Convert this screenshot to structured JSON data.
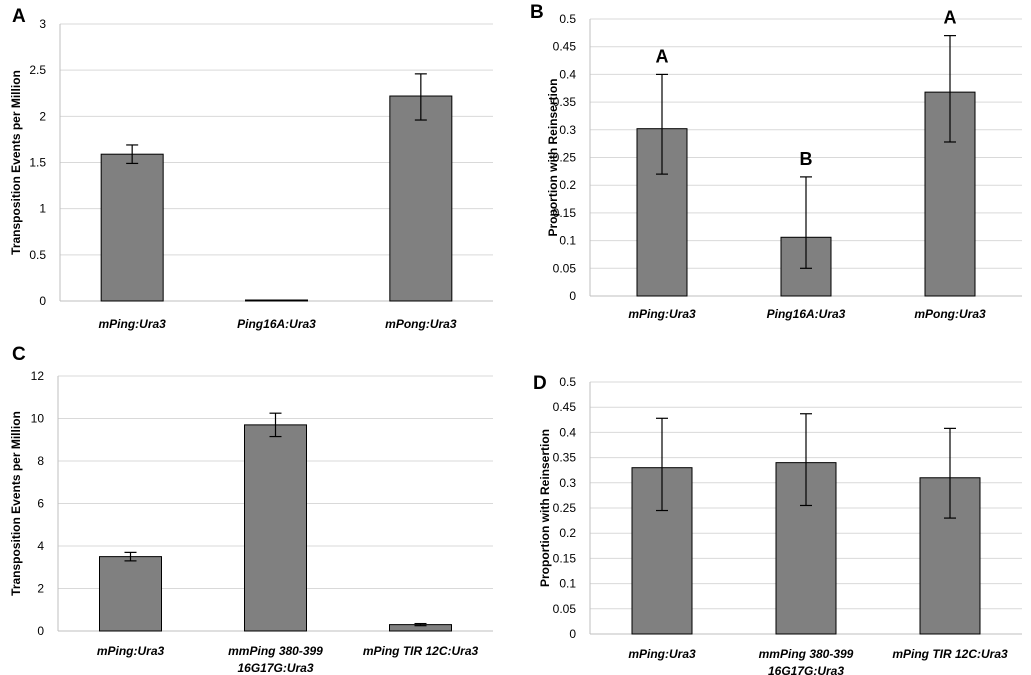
{
  "chart_data": [
    {
      "panel": "A",
      "type": "bar",
      "ylabel": "Transposition  Events per Million",
      "ylim": [
        0,
        3
      ],
      "ticks": [
        "0",
        "0.5",
        "1",
        "1.5",
        "2",
        "2.5",
        "3"
      ],
      "categories": [
        [
          "mPing:Ura3"
        ],
        [
          "Ping16A:Ura3"
        ],
        [
          "mPong:Ura3"
        ]
      ],
      "values": [
        1.59,
        0.01,
        2.22
      ],
      "err_low": [
        1.49,
        0.01,
        1.96
      ],
      "err_high": [
        1.69,
        0.01,
        2.46
      ],
      "sig_labels": []
    },
    {
      "panel": "B",
      "type": "bar",
      "ylabel": "Proportion with Reinsertion",
      "ylim": [
        0,
        0.5
      ],
      "ticks": [
        "0",
        "0.05",
        "0.1",
        "0.15",
        "0.2",
        "0.25",
        "0.3",
        "0.35",
        "0.4",
        "0.45",
        "0.5"
      ],
      "categories": [
        [
          "mPing:Ura3"
        ],
        [
          "Ping16A:Ura3"
        ],
        [
          "mPong:Ura3"
        ]
      ],
      "values": [
        0.302,
        0.106,
        0.368
      ],
      "err_low": [
        0.22,
        0.05,
        0.278
      ],
      "err_high": [
        0.4,
        0.215,
        0.47
      ],
      "sig_labels": [
        "A",
        "B",
        "A"
      ]
    },
    {
      "panel": "C",
      "type": "bar",
      "ylabel": "Transposition  Events per Million",
      "ylim": [
        0,
        12
      ],
      "ticks": [
        "0",
        "2",
        "4",
        "6",
        "8",
        "10",
        "12"
      ],
      "categories": [
        [
          "mPing:Ura3"
        ],
        [
          "mmPing 380-399",
          "16G17G:Ura3"
        ],
        [
          "mPing TIR 12C:Ura3"
        ]
      ],
      "values": [
        3.5,
        9.7,
        0.3
      ],
      "err_low": [
        3.3,
        9.15,
        0.25
      ],
      "err_high": [
        3.7,
        10.25,
        0.35
      ],
      "sig_labels": []
    },
    {
      "panel": "D",
      "type": "bar",
      "ylabel": "Proportion with Reinsertion",
      "ylim": [
        0,
        0.5
      ],
      "ticks": [
        "0",
        "0.05",
        "0.1",
        "0.15",
        "0.2",
        "0.25",
        "0.3",
        "0.35",
        "0.4",
        "0.45",
        "0.5"
      ],
      "categories": [
        [
          "mPing:Ura3"
        ],
        [
          "mmPing 380-399",
          "16G17G:Ura3"
        ],
        [
          "mPing TIR 12C:Ura3"
        ]
      ],
      "values": [
        0.33,
        0.34,
        0.31
      ],
      "err_low": [
        0.245,
        0.255,
        0.23
      ],
      "err_high": [
        0.428,
        0.437,
        0.408
      ],
      "sig_labels": []
    }
  ]
}
